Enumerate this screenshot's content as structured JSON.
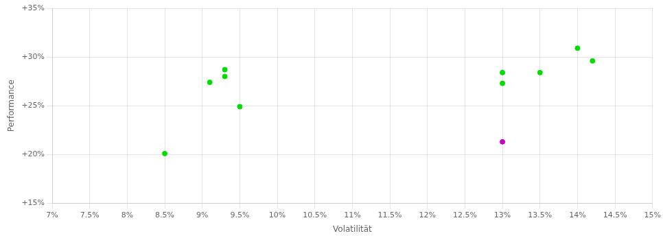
{
  "chart_data": {
    "type": "scatter",
    "xlabel": "Volatilität",
    "ylabel": "Performance",
    "xlim": [
      0.07,
      0.15
    ],
    "ylim": [
      0.15,
      0.35
    ],
    "xticks": [
      {
        "value": 0.07,
        "label": "7%"
      },
      {
        "value": 0.075,
        "label": "7.5%"
      },
      {
        "value": 0.08,
        "label": "8%"
      },
      {
        "value": 0.085,
        "label": "8.5%"
      },
      {
        "value": 0.09,
        "label": "9%"
      },
      {
        "value": 0.095,
        "label": "9.5%"
      },
      {
        "value": 0.1,
        "label": "10%"
      },
      {
        "value": 0.105,
        "label": "10.5%"
      },
      {
        "value": 0.11,
        "label": "11%"
      },
      {
        "value": 0.115,
        "label": "11.5%"
      },
      {
        "value": 0.12,
        "label": "12%"
      },
      {
        "value": 0.125,
        "label": "12.5%"
      },
      {
        "value": 0.13,
        "label": "13%"
      },
      {
        "value": 0.135,
        "label": "13.5%"
      },
      {
        "value": 0.14,
        "label": "14%"
      },
      {
        "value": 0.145,
        "label": "14.5%"
      },
      {
        "value": 0.15,
        "label": "15%"
      }
    ],
    "yticks": [
      {
        "value": 0.15,
        "label": "+15%"
      },
      {
        "value": 0.2,
        "label": "+20%"
      },
      {
        "value": 0.25,
        "label": "+25%"
      },
      {
        "value": 0.3,
        "label": "+30%"
      },
      {
        "value": 0.35,
        "label": "+35%"
      }
    ],
    "grid": true,
    "series": [
      {
        "color": "#00dd00",
        "x": [
          0.085,
          0.093,
          0.093,
          0.091,
          0.095,
          0.13,
          0.13,
          0.135,
          0.14,
          0.142
        ],
        "values": [
          0.201,
          0.287,
          0.28,
          0.274,
          0.249,
          0.284,
          0.273,
          0.284,
          0.309,
          0.296
        ]
      },
      {
        "color": "#cc00cc",
        "x": [
          0.13
        ],
        "values": [
          0.213
        ]
      }
    ]
  }
}
